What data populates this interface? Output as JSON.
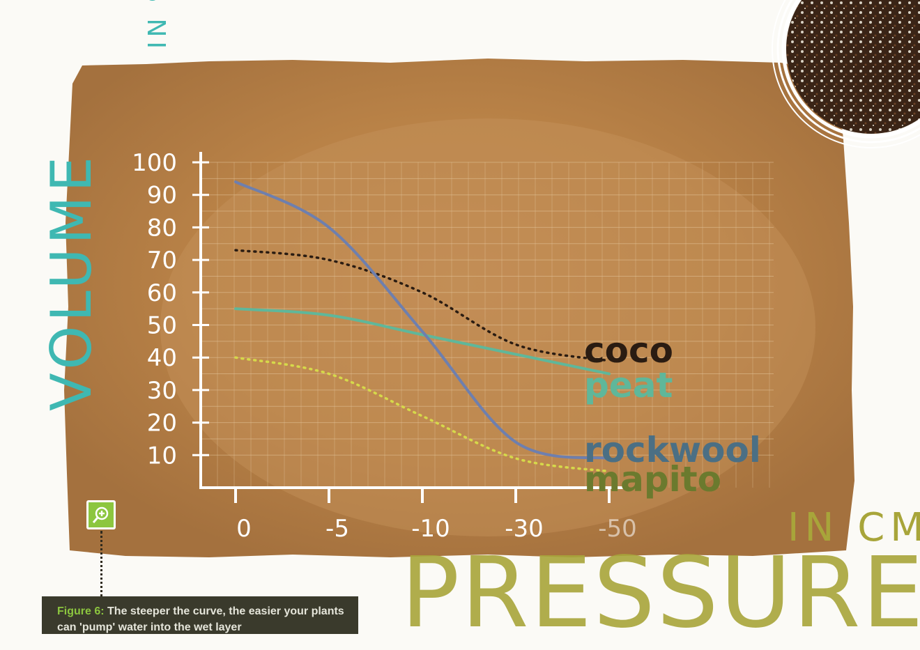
{
  "chart_data": {
    "type": "line",
    "xlabel": "PRESSURE",
    "xunit": "IN CM",
    "ylabel": "VOLUME",
    "yunit": "IN %",
    "categories": [
      "0",
      "-5",
      "-10",
      "-30",
      "-50"
    ],
    "ylim": [
      0,
      100
    ],
    "yticks": [
      10,
      20,
      30,
      40,
      50,
      60,
      70,
      80,
      90,
      100
    ],
    "grid": true,
    "series": [
      {
        "name": "coco",
        "color": "#2a1c12",
        "style": "dotted",
        "values": [
          73,
          70,
          60,
          44,
          39
        ]
      },
      {
        "name": "peat",
        "color": "#5fb79a",
        "style": "solid",
        "values": [
          55,
          53,
          47,
          41,
          35
        ]
      },
      {
        "name": "rockwool",
        "color": "#4b6f84",
        "lineColor": "#6e7fae",
        "style": "solid",
        "values": [
          94,
          80,
          48,
          14,
          9
        ]
      },
      {
        "name": "mapito",
        "color": "#6b7a2e",
        "lineColor": "#d6d94a",
        "style": "dotted",
        "values": [
          40,
          35,
          22,
          9,
          5
        ]
      }
    ]
  },
  "caption": {
    "label": "Figure 6:",
    "text": "The steeper the curve, the easier your plants can 'pump' water into the wet layer"
  },
  "icons": {
    "zoom": "zoom-in-icon"
  }
}
